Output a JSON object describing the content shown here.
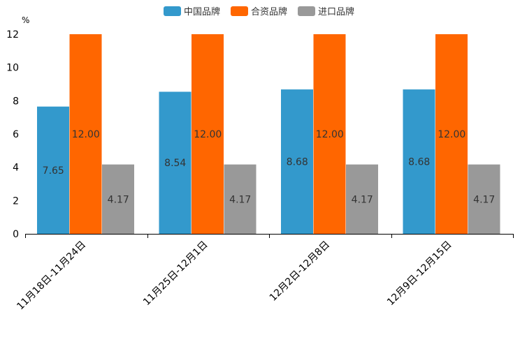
{
  "chart_data": {
    "type": "bar",
    "title": "",
    "xlabel": "",
    "ylabel": "%",
    "ylim": [
      0,
      12
    ],
    "yticks": [
      0,
      2,
      4,
      6,
      8,
      10,
      12
    ],
    "legend_position": "top-center",
    "grid": false,
    "categories": [
      "11月18日-11月24日",
      "11月25日-12月1日",
      "12月2日-12月8日",
      "12月9日-12月15日"
    ],
    "series": [
      {
        "name": "中国品牌",
        "color": "#3399cc",
        "values": [
          7.65,
          8.54,
          8.68,
          8.68
        ],
        "labels": [
          "7.65",
          "8.54",
          "8.68",
          "8.68"
        ]
      },
      {
        "name": "合资品牌",
        "color": "#ff6600",
        "values": [
          12.0,
          12.0,
          12.0,
          12.0
        ],
        "labels": [
          "12.00",
          "12.00",
          "12.00",
          "12.00"
        ]
      },
      {
        "name": "进口品牌",
        "color": "#999999",
        "values": [
          4.17,
          4.17,
          4.17,
          4.17
        ],
        "labels": [
          "4.17",
          "4.17",
          "4.17",
          "4.17"
        ]
      }
    ]
  }
}
